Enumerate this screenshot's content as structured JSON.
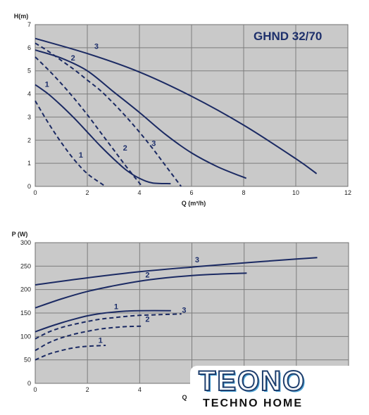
{
  "chart_data": [
    {
      "type": "line",
      "title": "GHND 32/70",
      "ylabel": "H(m)",
      "xlabel": "Q (m³/h)",
      "xlim": [
        0,
        12
      ],
      "ylim": [
        0,
        7
      ],
      "xticks": [
        0,
        2,
        4,
        6,
        8,
        10,
        12
      ],
      "yticks": [
        0,
        1,
        2,
        3,
        4,
        5,
        6,
        7
      ],
      "grid": true,
      "series": [
        {
          "name": "1",
          "style": "solid",
          "x": [
            0,
            0.5,
            1,
            1.5,
            2,
            2.5,
            3,
            3.5,
            4,
            4.5,
            5.2
          ],
          "y": [
            4.4,
            4.0,
            3.5,
            2.95,
            2.35,
            1.75,
            1.2,
            0.7,
            0.35,
            0.15,
            0.12
          ]
        },
        {
          "name": "2",
          "style": "solid",
          "x": [
            0,
            1,
            2,
            3,
            4,
            5,
            6,
            7,
            8.1
          ],
          "y": [
            5.9,
            5.55,
            5.0,
            4.1,
            3.2,
            2.25,
            1.45,
            0.85,
            0.35
          ]
        },
        {
          "name": "3",
          "style": "solid",
          "x": [
            0,
            2,
            4,
            6,
            8,
            10,
            10.8
          ],
          "y": [
            6.4,
            5.75,
            4.95,
            3.9,
            2.65,
            1.2,
            0.55
          ]
        },
        {
          "name": "1",
          "style": "dashed",
          "x": [
            0,
            0.5,
            1,
            1.5,
            2,
            2.5,
            2.7
          ],
          "y": [
            3.7,
            2.75,
            1.9,
            1.15,
            0.55,
            0.15,
            0.0
          ]
        },
        {
          "name": "2",
          "style": "dashed",
          "x": [
            0,
            0.5,
            1,
            1.5,
            2,
            2.5,
            3,
            3.5,
            4.1
          ],
          "y": [
            5.6,
            5.05,
            4.45,
            3.8,
            3.1,
            2.35,
            1.6,
            0.85,
            0.0
          ]
        },
        {
          "name": "3",
          "style": "dashed",
          "x": [
            0,
            0.5,
            1,
            1.5,
            2,
            2.5,
            3,
            3.5,
            4,
            4.5,
            5,
            5.6
          ],
          "y": [
            6.2,
            5.85,
            5.45,
            5.05,
            4.6,
            4.15,
            3.6,
            3.0,
            2.35,
            1.65,
            0.9,
            0.0
          ]
        }
      ],
      "labels": [
        {
          "text": "1",
          "x": 0.45,
          "y": 4.3
        },
        {
          "text": "2",
          "x": 1.45,
          "y": 5.45
        },
        {
          "text": "3",
          "x": 2.35,
          "y": 5.95
        },
        {
          "text": "1",
          "x": 1.75,
          "y": 1.25
        },
        {
          "text": "2",
          "x": 3.45,
          "y": 1.55
        },
        {
          "text": "3",
          "x": 4.55,
          "y": 1.75
        }
      ]
    },
    {
      "type": "line",
      "title": "",
      "ylabel": "P (W)",
      "xlabel": "Q",
      "xlim": [
        0,
        12
      ],
      "ylim": [
        0,
        300
      ],
      "xticks": [
        0,
        2,
        4,
        6
      ],
      "yticks": [
        0,
        50,
        100,
        150,
        200,
        250,
        300
      ],
      "grid": true,
      "series": [
        {
          "name": "1",
          "style": "solid",
          "x": [
            0,
            0.5,
            1,
            1.5,
            2,
            2.5,
            3,
            3.5,
            4,
            5.2
          ],
          "y": [
            110,
            120,
            129,
            137,
            144,
            149,
            152,
            154,
            155,
            155
          ]
        },
        {
          "name": "2",
          "style": "solid",
          "x": [
            0,
            1,
            2,
            3,
            4,
            5,
            6,
            7,
            8.1
          ],
          "y": [
            161,
            180,
            196,
            208,
            218,
            225,
            230,
            233,
            235
          ]
        },
        {
          "name": "3",
          "style": "solid",
          "x": [
            0,
            2,
            4,
            6,
            8,
            10,
            10.8
          ],
          "y": [
            210,
            225,
            238,
            248,
            257,
            265,
            268
          ]
        },
        {
          "name": "1",
          "style": "dashed",
          "x": [
            0,
            0.5,
            1,
            1.5,
            2,
            2.7
          ],
          "y": [
            50,
            62,
            70,
            76,
            79,
            81
          ]
        },
        {
          "name": "2",
          "style": "dashed",
          "x": [
            0,
            0.5,
            1,
            1.5,
            2,
            2.5,
            3,
            3.5,
            4.1
          ],
          "y": [
            70,
            86,
            97,
            105,
            111,
            116,
            119,
            121,
            122
          ]
        },
        {
          "name": "3",
          "style": "dashed",
          "x": [
            0,
            0.5,
            1,
            1.5,
            2,
            2.5,
            3,
            3.5,
            4,
            4.5,
            5,
            5.6
          ],
          "y": [
            95,
            109,
            119,
            126,
            132,
            137,
            140,
            143,
            145,
            146,
            147,
            148
          ]
        }
      ],
      "labels": [
        {
          "text": "1",
          "x": 3.1,
          "y": 158
        },
        {
          "text": "2",
          "x": 4.3,
          "y": 131
        },
        {
          "text": "3",
          "x": 5.7,
          "y": 151
        },
        {
          "text": "1",
          "x": 2.5,
          "y": 86
        },
        {
          "text": "2",
          "x": 4.3,
          "y": 226
        },
        {
          "text": "3",
          "x": 6.2,
          "y": 258
        }
      ]
    }
  ],
  "brand": {
    "name": "TEONO",
    "tagline": "TECHNO HOME",
    "colors": {
      "dark": "#1f3f6e",
      "light": "#4da4d6"
    }
  },
  "colors": {
    "curve": "#1b2a63",
    "plot_bg": "#c9c9c9",
    "grid": "#7d7d7d",
    "title": "#1d2f6b"
  }
}
